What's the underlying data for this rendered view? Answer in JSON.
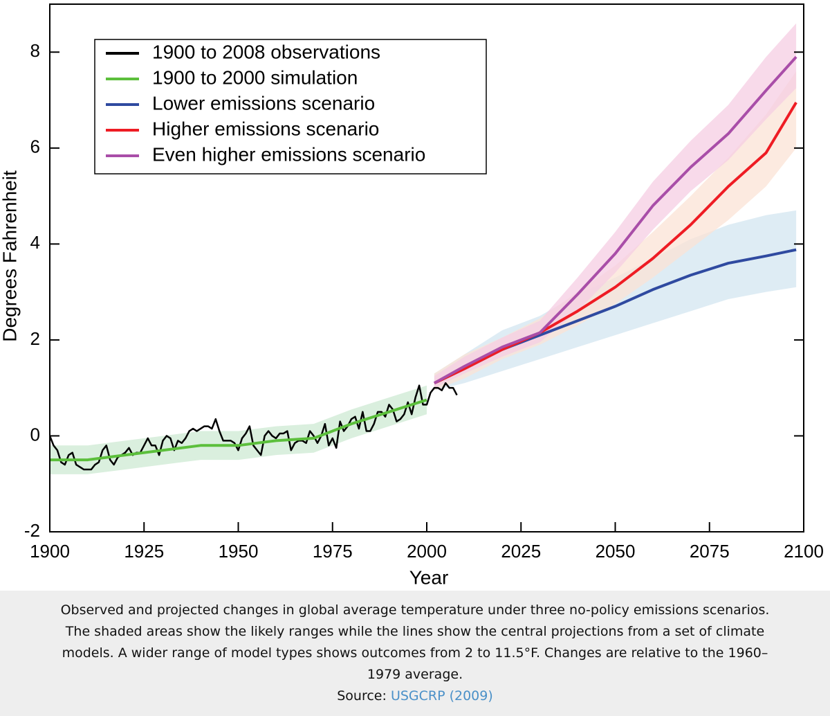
{
  "chart_data": {
    "type": "line",
    "x_label": "Year",
    "y_label": "Degrees Fahrenheit",
    "xlim": [
      1900,
      2100
    ],
    "xticks": [
      1900,
      1925,
      1950,
      1975,
      2000,
      2025,
      2050,
      2075,
      2100
    ],
    "ylim": [
      -2,
      9
    ],
    "yticks": [
      -2,
      0,
      2,
      4,
      6,
      8
    ],
    "legend": "upper left",
    "series": [
      {
        "name": "1900 to 2008 observations",
        "color": "#000000",
        "x": [
          1900,
          1901,
          1902,
          1903,
          1904,
          1905,
          1906,
          1907,
          1908,
          1909,
          1910,
          1911,
          1912,
          1913,
          1914,
          1915,
          1916,
          1917,
          1918,
          1919,
          1920,
          1921,
          1922,
          1923,
          1924,
          1925,
          1926,
          1927,
          1928,
          1929,
          1930,
          1931,
          1932,
          1933,
          1934,
          1935,
          1936,
          1937,
          1938,
          1939,
          1940,
          1941,
          1942,
          1943,
          1944,
          1945,
          1946,
          1947,
          1948,
          1949,
          1950,
          1951,
          1952,
          1953,
          1954,
          1955,
          1956,
          1957,
          1958,
          1959,
          1960,
          1961,
          1962,
          1963,
          1964,
          1965,
          1966,
          1967,
          1968,
          1969,
          1970,
          1971,
          1972,
          1973,
          1974,
          1975,
          1976,
          1977,
          1978,
          1979,
          1980,
          1981,
          1982,
          1983,
          1984,
          1985,
          1986,
          1987,
          1988,
          1989,
          1990,
          1991,
          1992,
          1993,
          1994,
          1995,
          1996,
          1997,
          1998,
          1999,
          2000,
          2001,
          2002,
          2003,
          2004,
          2005,
          2006,
          2007,
          2008
        ],
        "values": [
          0,
          -0.2,
          -0.3,
          -0.55,
          -0.6,
          -0.4,
          -0.35,
          -0.6,
          -0.65,
          -0.7,
          -0.7,
          -0.7,
          -0.6,
          -0.55,
          -0.3,
          -0.2,
          -0.5,
          -0.6,
          -0.45,
          -0.4,
          -0.35,
          -0.25,
          -0.4,
          -0.35,
          -0.35,
          -0.2,
          -0.05,
          -0.2,
          -0.2,
          -0.4,
          -0.1,
          0,
          -0.05,
          -0.3,
          -0.1,
          -0.15,
          -0.05,
          0.1,
          0.15,
          0.1,
          0.15,
          0.2,
          0.2,
          0.15,
          0.35,
          0.1,
          -0.1,
          -0.1,
          -0.1,
          -0.15,
          -0.3,
          -0.05,
          0.05,
          0.2,
          -0.2,
          -0.3,
          -0.4,
          0,
          0.1,
          0,
          -0.05,
          0.05,
          0.05,
          0.1,
          -0.3,
          -0.15,
          -0.1,
          -0.1,
          -0.15,
          0.1,
          0,
          -0.15,
          0,
          0.25,
          -0.2,
          -0.05,
          -0.25,
          0.3,
          0.1,
          0.2,
          0.35,
          0.4,
          0.15,
          0.5,
          0.1,
          0.1,
          0.25,
          0.5,
          0.5,
          0.4,
          0.65,
          0.55,
          0.3,
          0.35,
          0.45,
          0.7,
          0.45,
          0.8,
          1.05,
          0.65,
          0.65,
          0.9,
          1.0,
          1.0,
          0.95,
          1.1,
          1.0,
          1.0,
          0.85
        ]
      },
      {
        "name": "1900 to 2000 simulation",
        "color": "#5cbf3c",
        "band_color": "#cde9d3",
        "x": [
          1900,
          1910,
          1920,
          1930,
          1940,
          1950,
          1960,
          1970,
          1980,
          1990,
          2000
        ],
        "values": [
          -0.5,
          -0.5,
          -0.4,
          -0.3,
          -0.2,
          -0.2,
          -0.1,
          -0.05,
          0.25,
          0.5,
          0.75
        ],
        "lower": [
          -0.8,
          -0.8,
          -0.7,
          -0.6,
          -0.5,
          -0.5,
          -0.4,
          -0.35,
          -0.05,
          0.2,
          0.45
        ],
        "upper": [
          -0.2,
          -0.2,
          -0.1,
          0,
          0.1,
          0.1,
          0.2,
          0.25,
          0.55,
          0.8,
          1.05
        ]
      },
      {
        "name": "Lower emissions scenario",
        "color": "#2f4aa0",
        "band_color": "#d3e6f0",
        "x": [
          2002,
          2010,
          2020,
          2030,
          2040,
          2050,
          2060,
          2070,
          2080,
          2090,
          2098
        ],
        "values": [
          1.1,
          1.4,
          1.8,
          2.1,
          2.4,
          2.7,
          3.05,
          3.35,
          3.6,
          3.75,
          3.88
        ],
        "lower": [
          0.95,
          1.1,
          1.35,
          1.6,
          1.85,
          2.1,
          2.35,
          2.6,
          2.85,
          3.0,
          3.1
        ],
        "upper": [
          1.3,
          1.7,
          2.2,
          2.5,
          2.95,
          3.3,
          3.7,
          4.1,
          4.4,
          4.6,
          4.7
        ]
      },
      {
        "name": "Higher emissions scenario",
        "color": "#ee1c24",
        "band_color": "#fbe3d5",
        "x": [
          2002,
          2010,
          2020,
          2030,
          2040,
          2050,
          2060,
          2070,
          2080,
          2090,
          2098
        ],
        "values": [
          1.1,
          1.4,
          1.8,
          2.15,
          2.6,
          3.1,
          3.7,
          4.4,
          5.2,
          5.9,
          6.95
        ],
        "lower": [
          0.95,
          1.2,
          1.6,
          1.9,
          2.3,
          2.75,
          3.3,
          3.9,
          4.5,
          5.2,
          6.0
        ],
        "upper": [
          1.3,
          1.7,
          2.05,
          2.45,
          3.0,
          3.55,
          4.25,
          5.0,
          5.8,
          6.7,
          7.6
        ]
      },
      {
        "name": "Even higher emissions scenario",
        "color": "#a94ea8",
        "band_color": "#f6cde3",
        "x": [
          2002,
          2010,
          2020,
          2030,
          2040,
          2050,
          2060,
          2070,
          2080,
          2090,
          2098
        ],
        "values": [
          1.1,
          1.45,
          1.85,
          2.15,
          2.95,
          3.8,
          4.8,
          5.6,
          6.3,
          7.2,
          7.9
        ],
        "lower": [
          1.0,
          1.3,
          1.65,
          1.95,
          2.6,
          3.4,
          4.3,
          5.1,
          5.75,
          6.6,
          7.25
        ],
        "upper": [
          1.25,
          1.65,
          2.05,
          2.4,
          3.3,
          4.25,
          5.3,
          6.15,
          6.9,
          7.9,
          8.6
        ]
      }
    ]
  },
  "caption": {
    "lines": [
      "Observed and projected changes in global average temperature under three no-policy emissions scenarios.",
      "The shaded areas show the likely ranges while the lines show the central projections from a set of climate",
      "models. A wider range of model types shows outcomes from 2 to 11.5°F. Changes are relative to the 1960–",
      "1979 average."
    ],
    "source_label": "Source:",
    "source_link": "USGCRP (2009)"
  }
}
